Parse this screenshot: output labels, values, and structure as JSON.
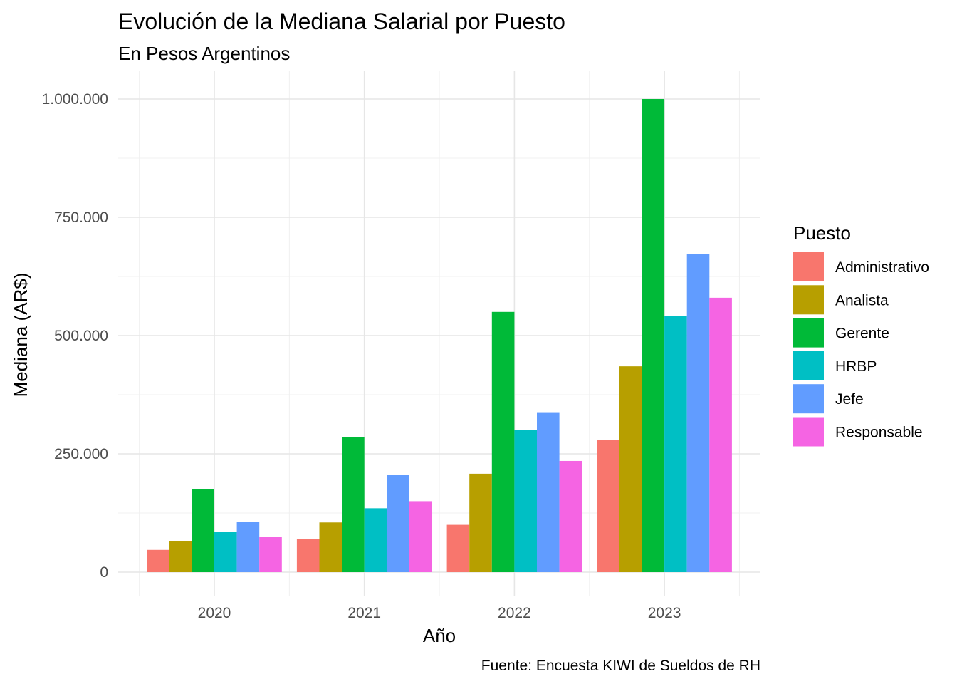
{
  "chart_data": {
    "type": "bar",
    "title": "Evolución de la Mediana Salarial por Puesto",
    "subtitle": "En Pesos Argentinos",
    "xlabel": "Año",
    "ylabel": "Mediana (AR$)",
    "caption": "Fuente: Encuesta KIWI de Sueldos de RH",
    "categories": [
      "2020",
      "2021",
      "2022",
      "2023"
    ],
    "ylim": [
      0,
      1000000
    ],
    "y_ticks": [
      0,
      250000,
      500000,
      750000,
      1000000
    ],
    "y_tick_labels": [
      "0",
      "250.000",
      "500.000",
      "750.000",
      "1.000.000"
    ],
    "grid": true,
    "legend": {
      "title": "Puesto",
      "position": "right"
    },
    "series": [
      {
        "name": "Administrativo",
        "color": "#F8766D",
        "values": [
          47000,
          70000,
          100000,
          280000
        ]
      },
      {
        "name": "Analista",
        "color": "#B79F00",
        "values": [
          65000,
          105000,
          208000,
          435000
        ]
      },
      {
        "name": "Gerente",
        "color": "#00BA38",
        "values": [
          175000,
          285000,
          550000,
          1000000
        ]
      },
      {
        "name": "HRBP",
        "color": "#00BFC4",
        "values": [
          85000,
          135000,
          300000,
          542000
        ]
      },
      {
        "name": "Jefe",
        "color": "#619CFF",
        "values": [
          106000,
          205000,
          338000,
          672000
        ]
      },
      {
        "name": "Responsable",
        "color": "#F564E3",
        "values": [
          75000,
          150000,
          235000,
          580000
        ]
      }
    ]
  }
}
